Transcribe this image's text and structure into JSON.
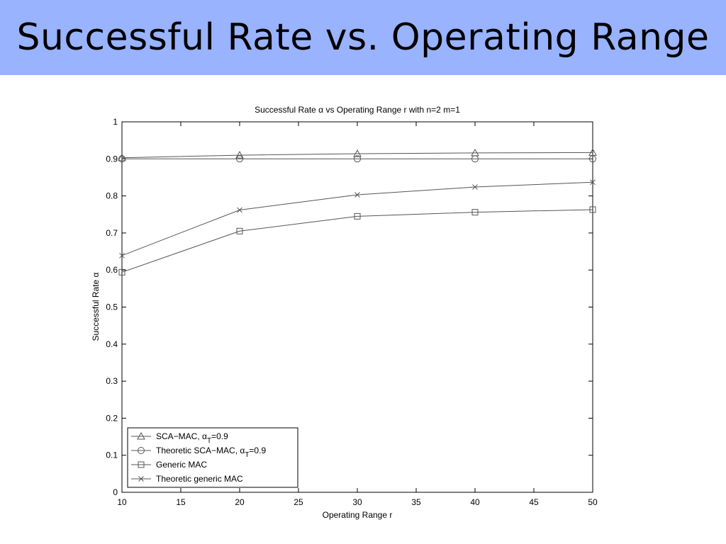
{
  "slide": {
    "title": "Successful Rate vs. Operating Range",
    "header_color": "#99b3ff"
  },
  "chart_data": {
    "type": "line",
    "title": "Successful Rate α vs Operating Range r with n=2 m=1",
    "xlabel": "Operating Range r",
    "ylabel": "Successful Rate α",
    "xlim": [
      10,
      50
    ],
    "ylim": [
      0,
      1
    ],
    "xticks": [
      10,
      15,
      20,
      25,
      30,
      35,
      40,
      45,
      50
    ],
    "yticks": [
      0,
      0.1,
      0.2,
      0.3,
      0.4,
      0.5,
      0.6,
      0.7,
      0.8,
      0.9,
      1
    ],
    "ytick_labels": [
      "0",
      "0.1",
      "0.2",
      "0.3",
      "0.4",
      "0.5",
      "0.6",
      "0.7",
      "0.8",
      "0.9",
      "1"
    ],
    "grid": false,
    "legend_position": "bottom-left",
    "line_color": "#555555",
    "x": [
      10,
      20,
      30,
      40,
      50
    ],
    "series": [
      {
        "name": "SCA−MAC, α",
        "subscript": "T",
        "suffix": "=0.9",
        "marker": "triangle",
        "values": [
          0.903,
          0.91,
          0.914,
          0.916,
          0.917
        ]
      },
      {
        "name": "Theoretic SCA−MAC, α",
        "subscript": "T",
        "suffix": "=0.9",
        "marker": "circle",
        "values": [
          0.9,
          0.9,
          0.9,
          0.9,
          0.9
        ]
      },
      {
        "name": "Generic MAC",
        "subscript": "",
        "suffix": "",
        "marker": "square",
        "values": [
          0.594,
          0.705,
          0.745,
          0.756,
          0.763
        ]
      },
      {
        "name": "Theoretic generic MAC",
        "subscript": "",
        "suffix": "",
        "marker": "x",
        "values": [
          0.639,
          0.762,
          0.803,
          0.824,
          0.837
        ]
      }
    ]
  }
}
